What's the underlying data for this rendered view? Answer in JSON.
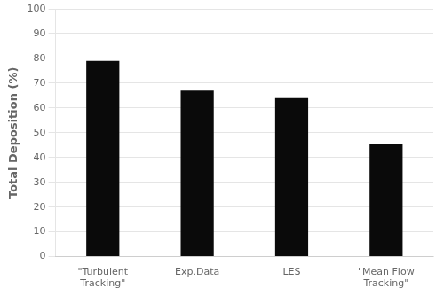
{
  "chart_data": {
    "type": "bar",
    "categories": [
      "\"Turbulent\nTracking\"",
      "Exp.Data",
      "LES",
      "\"Mean Flow\nTracking\""
    ],
    "values": [
      79,
      67,
      64,
      45.5
    ],
    "color": "#0a0a0a",
    "ylabel": "Total Deposition (%)",
    "ylim": [
      0,
      100
    ],
    "yticks": [
      0,
      10,
      20,
      30,
      40,
      50,
      60,
      70,
      80,
      90,
      100
    ],
    "grid": true
  }
}
